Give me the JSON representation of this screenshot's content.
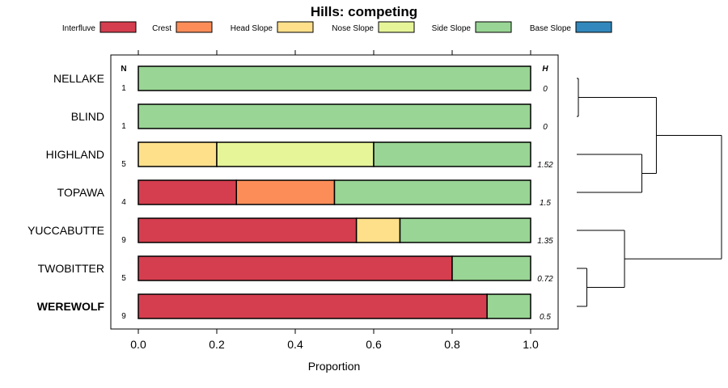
{
  "chart_data": {
    "type": "bar",
    "orientation": "horizontal",
    "stacked": true,
    "title": "Hills: competing",
    "xlabel": "Proportion",
    "ylabel": "",
    "xlim": [
      0,
      1
    ],
    "x_ticks": [
      "0.0",
      "0.2",
      "0.4",
      "0.6",
      "0.8",
      "1.0"
    ],
    "legend": [
      {
        "name": "Interfluve",
        "color": "#D53E4F"
      },
      {
        "name": "Crest",
        "color": "#FC8D59"
      },
      {
        "name": "Head Slope",
        "color": "#FEE08B"
      },
      {
        "name": "Nose Slope",
        "color": "#E6F598"
      },
      {
        "name": "Side Slope",
        "color": "#99D594"
      },
      {
        "name": "Base Slope",
        "color": "#3288BD"
      }
    ],
    "legend_position": "top",
    "n_header": "N",
    "h_header": "H",
    "categories": [
      {
        "name": "NELLAKE",
        "n": "1",
        "h": "0",
        "bold": false,
        "values": [
          0,
          0,
          0,
          0,
          1.0,
          0
        ]
      },
      {
        "name": "BLIND",
        "n": "1",
        "h": "0",
        "bold": false,
        "values": [
          0,
          0,
          0,
          0,
          1.0,
          0
        ]
      },
      {
        "name": "HIGHLAND",
        "n": "5",
        "h": "1.52",
        "bold": false,
        "values": [
          0,
          0,
          0.2,
          0.4,
          0.4,
          0
        ]
      },
      {
        "name": "TOPAWA",
        "n": "4",
        "h": "1.5",
        "bold": false,
        "values": [
          0.25,
          0.25,
          0,
          0,
          0.5,
          0
        ]
      },
      {
        "name": "YUCCABUTTE",
        "n": "9",
        "h": "1.35",
        "bold": false,
        "values": [
          0.556,
          0,
          0.111,
          0,
          0.333,
          0
        ]
      },
      {
        "name": "TWOBITTER",
        "n": "5",
        "h": "0.72",
        "bold": false,
        "values": [
          0.8,
          0,
          0,
          0,
          0.2,
          0
        ]
      },
      {
        "name": "WEREWOLF",
        "n": "9",
        "h": "0.5",
        "bold": true,
        "values": [
          0.889,
          0,
          0,
          0,
          0.111,
          0
        ]
      }
    ],
    "dendrogram": {
      "merges": [
        {
          "children": [
            0,
            1
          ],
          "height": 0.0
        },
        {
          "children": [
            5,
            6
          ],
          "height": 0.07
        },
        {
          "children": [
            2,
            3
          ],
          "height": 0.45
        },
        {
          "children": [
            "m0",
            "m2"
          ],
          "height": 0.55
        },
        {
          "children": [
            4,
            "m1"
          ],
          "height": 0.33
        },
        {
          "children": [
            "m3",
            "m4"
          ],
          "height": 1.0
        }
      ]
    }
  }
}
